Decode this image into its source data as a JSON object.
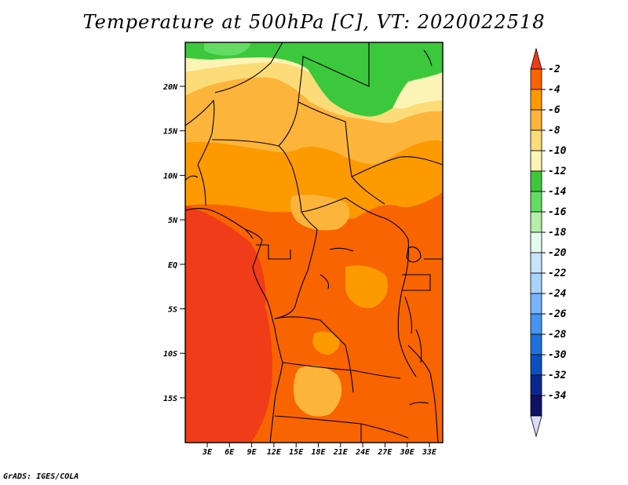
{
  "title": "Temperature at 500hPa [C], VT: 2020022518",
  "credit": "GrADS: IGES/COLA",
  "lat_labels": [
    "20N",
    "15N",
    "10N",
    "5N",
    "EQ",
    "5S",
    "10S",
    "15S"
  ],
  "lon_labels": [
    "3E",
    "6E",
    "9E",
    "12E",
    "15E",
    "18E",
    "21E",
    "24E",
    "27E",
    "30E",
    "33E"
  ],
  "colorbar": {
    "labels": [
      "-2",
      "-4",
      "-6",
      "-8",
      "-10",
      "-12",
      "-14",
      "-16",
      "-18",
      "-20",
      "-22",
      "-24",
      "-26",
      "-28",
      "-30",
      "-32",
      "-34"
    ],
    "colors": [
      "#f03c18",
      "#f86400",
      "#fc9a00",
      "#fcb43a",
      "#fcdc78",
      "#fcf4b4",
      "#3cc83c",
      "#64dc64",
      "#b4f0a8",
      "#e4fcf0",
      "#c8e4fc",
      "#a8d4fc",
      "#78b4fc",
      "#4694f0",
      "#2070dc",
      "#0c50c0",
      "#0a2890",
      "#101064",
      "#dcdcfc"
    ]
  },
  "palette": {
    "red": "#f03c18",
    "orange_dark": "#f86400",
    "orange": "#fc9a00",
    "orange_light": "#fcb43a",
    "yellow": "#fcdc78",
    "cream": "#fcf4b4",
    "green": "#3cc83c",
    "green_light": "#64dc64"
  }
}
